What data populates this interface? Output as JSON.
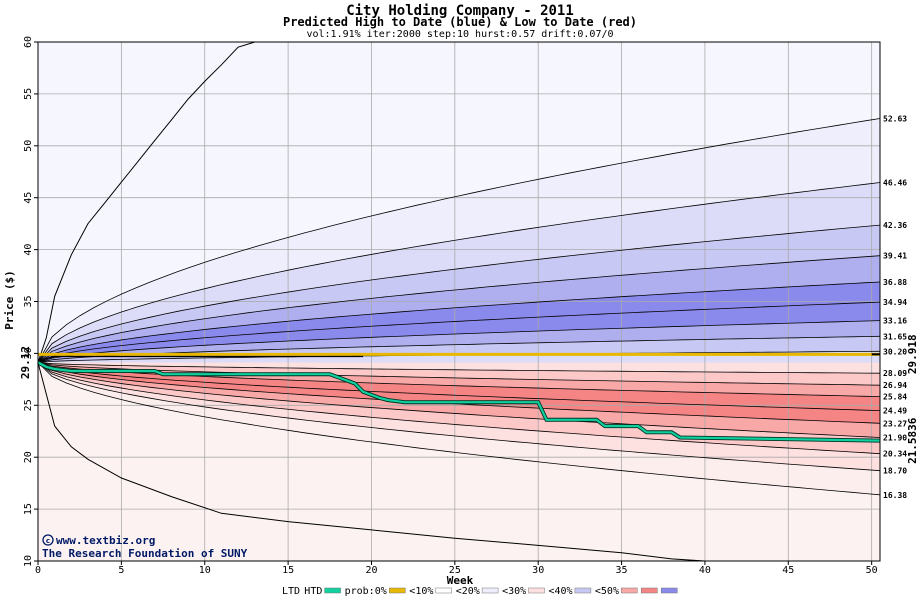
{
  "chart_data": {
    "type": "area",
    "title": "City Holding Company - 2011",
    "subtitle": "Predicted High to Date (blue) &  Low to Date (red)",
    "params": "vol:1.91% iter:2000 step:10 hurst:0.57 drift:0.07/0",
    "xlabel": "Week",
    "ylabel": "Price ($)",
    "xlim": [
      0,
      50.5
    ],
    "ylim": [
      10,
      60
    ],
    "xticks": [
      0,
      5,
      10,
      15,
      20,
      25,
      30,
      35,
      40,
      45,
      50
    ],
    "yticks": [
      10,
      15,
      20,
      25,
      30,
      35,
      40,
      45,
      50,
      55,
      60
    ],
    "grid": true,
    "start_price": 29.12,
    "start_price_label": "29.12",
    "right_labels": [
      "52.63",
      "46.46",
      "42.36",
      "39.41",
      "36.88",
      "34.94",
      "33.16",
      "31.65",
      "30.20",
      "28.09",
      "26.94",
      "25.84",
      "24.49",
      "23.27",
      "21.90",
      "20.34",
      "18.70",
      "16.38"
    ],
    "htd_value": 29.918,
    "htd_label": "29.918",
    "ltd_value": 21.5836,
    "ltd_label": "21.5836",
    "htd_series": {
      "x": [
        0,
        0.5,
        1,
        19.5
      ],
      "y": [
        29.12,
        29.5,
        29.7,
        29.7
      ]
    },
    "htd_end_series": {
      "x": [
        50,
        50.5
      ],
      "y": [
        29.918,
        29.918
      ]
    },
    "ltd_series": {
      "x": [
        0,
        0.5,
        1,
        2,
        7,
        7.5,
        17.5,
        18,
        18.5,
        19,
        19.5,
        20,
        20.5,
        21,
        22,
        30,
        30.5,
        33.5,
        34,
        36,
        36.5,
        38,
        38.5,
        50.5
      ],
      "y": [
        29.12,
        28.7,
        28.5,
        28.3,
        28.3,
        28.0,
        28.0,
        27.7,
        27.4,
        27.1,
        26.3,
        26.0,
        25.7,
        25.5,
        25.3,
        25.3,
        23.6,
        23.6,
        23.0,
        23.0,
        22.4,
        22.4,
        21.9,
        21.6
      ]
    },
    "bands_upper": [
      {
        "end": 52.63,
        "fill": "#eeeefc"
      },
      {
        "end": 46.46,
        "fill": "#dcdcf8"
      },
      {
        "end": 42.36,
        "fill": "#c8c8f4"
      },
      {
        "end": 39.41,
        "fill": "#afaff0"
      },
      {
        "end": 36.88,
        "fill": "#8a8aec"
      },
      {
        "end": 34.94,
        "fill": "#8a8aec"
      },
      {
        "end": 33.16,
        "fill": "#afaff0"
      },
      {
        "end": 31.65,
        "fill": "#c8c8f4"
      },
      {
        "end": 30.2,
        "fill": "#dcdcf8"
      }
    ],
    "bands_lower": [
      {
        "end": 28.09,
        "fill": "#fde0e0"
      },
      {
        "end": 26.94,
        "fill": "#fcc8c8"
      },
      {
        "end": 25.84,
        "fill": "#f9a8a8"
      },
      {
        "end": 24.49,
        "fill": "#f58585"
      },
      {
        "end": 23.27,
        "fill": "#f58585"
      },
      {
        "end": 21.9,
        "fill": "#f9a8a8"
      },
      {
        "end": 20.34,
        "fill": "#fcc8c8"
      },
      {
        "end": 18.7,
        "fill": "#fde0e0"
      },
      {
        "end": 16.38,
        "fill": "#fdeeee"
      }
    ],
    "outer_upper": {
      "x": [
        0,
        0.5,
        1,
        2,
        3,
        4,
        5,
        6,
        7,
        8,
        9,
        10,
        11,
        12,
        13
      ],
      "y": [
        29.12,
        31.5,
        35.5,
        39.5,
        42.5,
        44.5,
        46.5,
        48.5,
        50.5,
        52.5,
        54.5,
        56.2,
        57.8,
        59.5,
        60
      ]
    },
    "outer_lower": {
      "x": [
        0,
        1,
        2,
        3,
        5,
        8,
        11,
        15,
        20,
        25,
        30,
        35,
        38,
        40
      ],
      "y": [
        29.12,
        23.0,
        21.0,
        19.8,
        18.0,
        16.2,
        14.6,
        13.8,
        13.0,
        12.2,
        11.5,
        10.8,
        10.2,
        10
      ]
    },
    "colors": {
      "htd": "#e8b800",
      "ltd": "#10d0a0",
      "start_label": "#006633",
      "htd_label": "#b8860b",
      "ltd_label": "#009966",
      "grid": "#aaaaaa",
      "credit": "#001a66"
    },
    "credits": [
      "www.textbiz.org",
      "The Research Foundation of SUNY"
    ],
    "legend": [
      {
        "label": "LTD",
        "swatch": "none"
      },
      {
        "label": "HTD",
        "swatch": "#10d0a0"
      },
      {
        "label": "prob:0%",
        "swatch": "#e8b800"
      },
      {
        "label": "<10%",
        "swatch": "#ffffff"
      },
      {
        "label": "<20%",
        "swatch": "#eeeefc"
      },
      {
        "label": "<30%",
        "swatch": "#fde0e0"
      },
      {
        "label": "<40%",
        "swatch": "#c8c8f4"
      },
      {
        "label": "<50%",
        "swatch": "#f9a8a8"
      },
      {
        "label": "",
        "swatch": "#f58585"
      },
      {
        "label": "",
        "swatch": "#8a8aec"
      }
    ]
  }
}
